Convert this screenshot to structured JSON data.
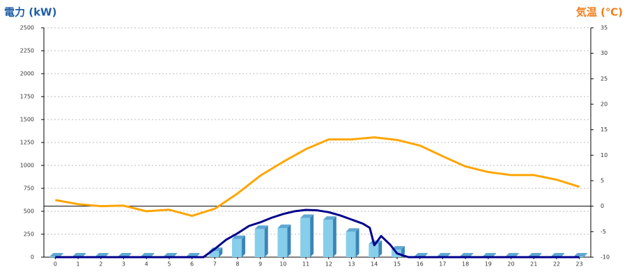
{
  "chart_data": {
    "type": "combo",
    "y_title": "電力 (kW)",
    "y2_title": "気温 (℃)",
    "categories": [
      "0",
      "1",
      "2",
      "3",
      "4",
      "5",
      "6",
      "7",
      "8",
      "9",
      "10",
      "11",
      "12",
      "13",
      "14",
      "15",
      "16",
      "17",
      "18",
      "19",
      "20",
      "21",
      "22",
      "23"
    ],
    "ylim": [
      0,
      2500
    ],
    "yticks": [
      0,
      250,
      500,
      750,
      1000,
      1250,
      1500,
      1750,
      2000,
      2250,
      2500
    ],
    "y2lim": [
      -10,
      35
    ],
    "y2ticks": [
      -10,
      -5,
      0,
      5,
      10,
      15,
      20,
      25,
      30,
      35
    ],
    "grid": true,
    "series": [
      {
        "type": "bar",
        "color": "#87ceeb",
        "values": [
          0,
          0,
          0,
          0,
          0,
          0,
          0,
          60,
          190,
          300,
          310,
          420,
          400,
          270,
          135,
          75,
          0,
          0,
          0,
          0,
          0,
          0,
          0,
          0
        ]
      },
      {
        "type": "line",
        "color": "#00008b",
        "x": [
          0,
          6.5,
          7,
          7.5,
          8,
          8.5,
          9,
          9.5,
          10,
          10.5,
          11,
          11.5,
          12,
          12.5,
          13,
          13.5,
          13.8,
          14,
          14.3,
          14.7,
          15,
          15.5,
          23
        ],
        "values": [
          0,
          0,
          90,
          190,
          260,
          340,
          380,
          430,
          470,
          500,
          515,
          510,
          490,
          455,
          410,
          365,
          320,
          130,
          230,
          135,
          40,
          0,
          0
        ]
      },
      {
        "type": "line",
        "axis": "y2",
        "color": "#ffa500",
        "values": [
          1.2,
          0.4,
          0,
          0.1,
          -1,
          -0.7,
          -1.9,
          -0.5,
          2.5,
          6,
          8.7,
          11.2,
          13.1,
          13.1,
          13.5,
          13,
          11.9,
          9.8,
          7.8,
          6.7,
          6.1,
          6.1,
          5.2,
          3.8
        ]
      }
    ]
  }
}
